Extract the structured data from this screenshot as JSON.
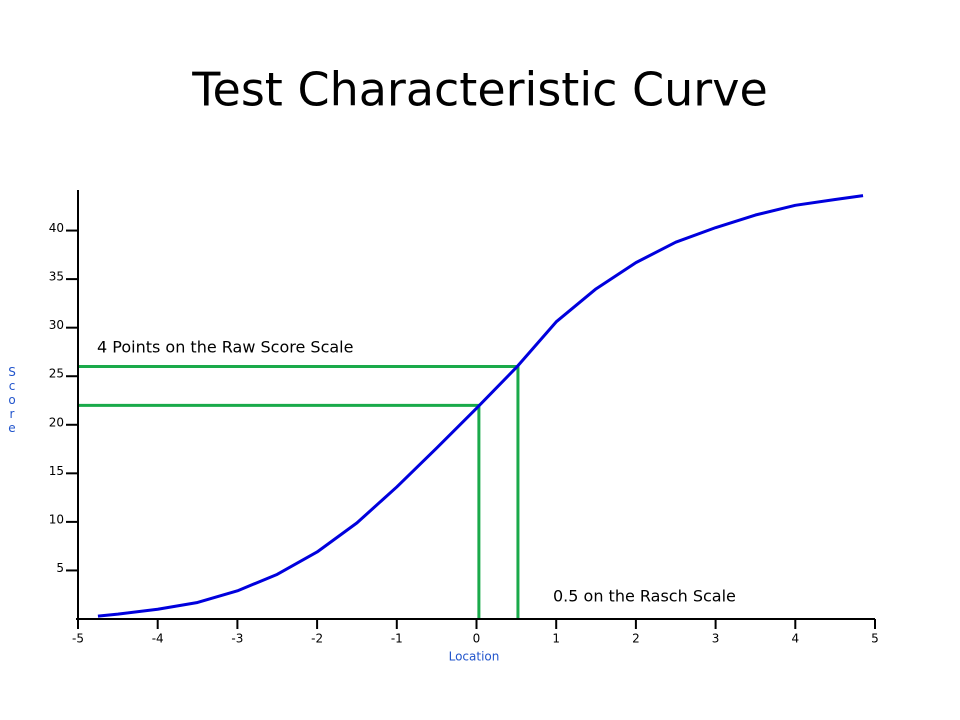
{
  "chart_data": {
    "type": "line",
    "title": "Test Characteristic Curve",
    "x_label": "Location",
    "y_label": "Score",
    "xlim": [
      -5,
      5
    ],
    "ylim": [
      0,
      45
    ],
    "xticks": [
      -5,
      -4,
      -3,
      -2,
      -1,
      0,
      1,
      2,
      3,
      4,
      5
    ],
    "yticks": [
      5,
      10,
      15,
      20,
      25,
      30,
      35,
      40
    ],
    "x": [
      -4.75,
      -4.5,
      -4,
      -3.5,
      -3,
      -2.5,
      -2,
      -1.5,
      -1,
      -0.5,
      0,
      0.5,
      1,
      1.5,
      2,
      2.5,
      3,
      3.5,
      4,
      4.5,
      4.85
    ],
    "series": [
      {
        "color": "#0000dd",
        "values": [
          0.3,
          0.5,
          1.0,
          1.7,
          2.9,
          4.6,
          6.9,
          9.9,
          13.6,
          17.6,
          21.7,
          25.9,
          30.6,
          34.0,
          36.7,
          38.8,
          40.3,
          41.6,
          42.6,
          43.2,
          43.6
        ]
      }
    ],
    "guides": {
      "color": "#1aaa4a",
      "points": [
        {
          "x": 0.52,
          "y": 26
        },
        {
          "x": 0.03,
          "y": 22
        }
      ]
    },
    "annotations": [
      "4 Points on the Raw Score Scale",
      "0.5 on the Rasch Scale"
    ]
  }
}
